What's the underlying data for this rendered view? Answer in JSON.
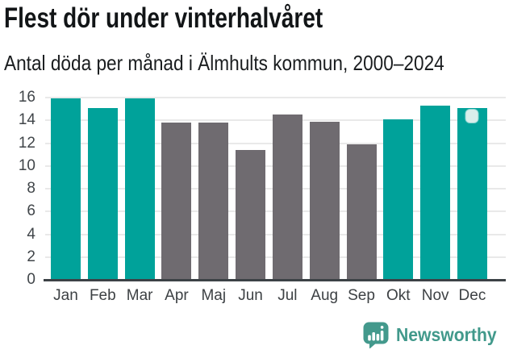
{
  "header": {
    "title": "Flest dör under vinterhalvåret",
    "subtitle": "Antal döda per månad i Älmhults kommun, 2000–2024"
  },
  "chart_data": {
    "type": "bar",
    "title": "Flest dör under vinterhalvåret",
    "subtitle": "Antal döda per månad i Älmhults kommun, 2000–2024",
    "categories": [
      "Jan",
      "Feb",
      "Mar",
      "Apr",
      "Maj",
      "Jun",
      "Jul",
      "Aug",
      "Sep",
      "Okt",
      "Nov",
      "Dec"
    ],
    "values": [
      15.9,
      15.1,
      15.9,
      13.8,
      13.8,
      11.4,
      14.5,
      13.9,
      11.9,
      14.1,
      15.3,
      15.1
    ],
    "bar_color_keys": [
      "winter",
      "winter",
      "winter",
      "summer",
      "summer",
      "summer",
      "summer",
      "summer",
      "summer",
      "winter",
      "winter",
      "winter"
    ],
    "palette": {
      "winter": "#00A29A",
      "summer": "#6F6B70"
    },
    "xlabel": "",
    "ylabel": "",
    "ylim": [
      0,
      16
    ],
    "yticks": [
      0,
      2,
      4,
      6,
      8,
      10,
      12,
      14,
      16
    ],
    "grid": true,
    "legend": "none",
    "latest_value_marker": {
      "category": "Dec",
      "index": 11,
      "fill": "#D9EEEB"
    }
  },
  "branding": {
    "name": "Newsworthy",
    "color": "#41998B",
    "icon": "newsworthy-speech-bubble-bar-chart-icon"
  }
}
